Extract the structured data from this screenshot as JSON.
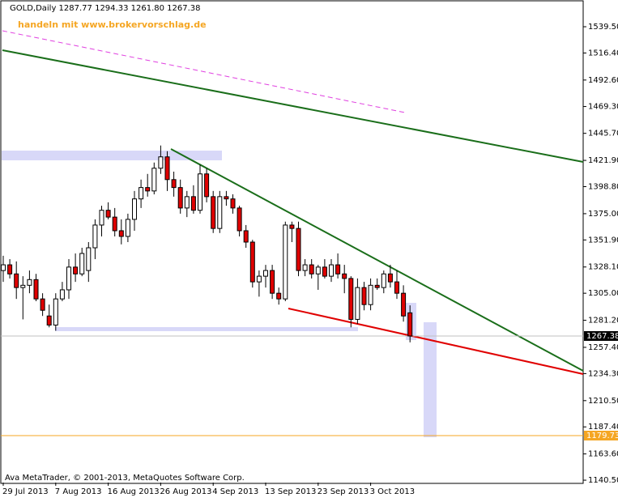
{
  "chart_data": {
    "type": "candlestick",
    "title": "GOLD,Daily  1287.77 1294.33 1261.80 1267.38",
    "watermark": "handeln mit www.brokervorschlag.de",
    "footer": "Ava MetaTrader, © 2001-2013, MetaQuotes Software Corp.",
    "categories": [
      "29 Jul 2013",
      null,
      null,
      null,
      null,
      null,
      null,
      null,
      "7 Aug 2013",
      null,
      null,
      null,
      null,
      null,
      null,
      null,
      "16 Aug 2013",
      null,
      null,
      null,
      null,
      null,
      null,
      null,
      "26 Aug 2013",
      null,
      null,
      null,
      null,
      null,
      null,
      null,
      "4 Sep 2013",
      null,
      null,
      null,
      null,
      null,
      null,
      null,
      "13 Sep 2013",
      null,
      null,
      null,
      null,
      null,
      null,
      null,
      "23 Sep 2013",
      null,
      null,
      null,
      null,
      null,
      null,
      null,
      "3 Oct 2013",
      null,
      null,
      null,
      null,
      null,
      null
    ],
    "open": [
      1325,
      1330,
      1322,
      1310,
      1312,
      1317,
      1300,
      1285,
      1277,
      1300,
      1308,
      1328,
      1322,
      1325,
      1345,
      1365,
      1378,
      1372,
      1360,
      1355,
      1370,
      1388,
      1398,
      1395,
      1415,
      1425,
      1405,
      1398,
      1380,
      1390,
      1378,
      1410,
      1390,
      1362,
      1390,
      1388,
      1380,
      1360,
      1350,
      1315,
      1320,
      1325,
      1305,
      1300,
      1365,
      1362,
      1325,
      1330,
      1322,
      1328,
      1320,
      1330,
      1322,
      1318,
      1282,
      1310,
      1295,
      1312,
      1310,
      1322,
      1315,
      1305,
      1287.77
    ],
    "high": [
      1338,
      1335,
      1333,
      1320,
      1325,
      1322,
      1305,
      1295,
      1305,
      1315,
      1335,
      1340,
      1345,
      1350,
      1370,
      1382,
      1385,
      1380,
      1370,
      1375,
      1395,
      1405,
      1410,
      1420,
      1435,
      1430,
      1412,
      1405,
      1395,
      1400,
      1418,
      1415,
      1395,
      1395,
      1395,
      1392,
      1382,
      1365,
      1352,
      1325,
      1330,
      1330,
      1310,
      1368,
      1368,
      1368,
      1335,
      1335,
      1330,
      1335,
      1335,
      1340,
      1330,
      1320,
      1318,
      1315,
      1318,
      1318,
      1325,
      1330,
      1325,
      1312,
      1294.33
    ],
    "low": [
      1315,
      1318,
      1300,
      1282,
      1305,
      1298,
      1285,
      1275,
      1272,
      1298,
      1300,
      1315,
      1320,
      1315,
      1335,
      1355,
      1370,
      1355,
      1348,
      1350,
      1360,
      1380,
      1390,
      1392,
      1410,
      1395,
      1390,
      1375,
      1372,
      1375,
      1375,
      1385,
      1358,
      1358,
      1382,
      1375,
      1355,
      1345,
      1310,
      1302,
      1310,
      1300,
      1295,
      1298,
      1350,
      1320,
      1320,
      1318,
      1308,
      1318,
      1315,
      1318,
      1305,
      1275,
      1278,
      1290,
      1290,
      1308,
      1305,
      1310,
      1300,
      1280,
      1261.8
    ],
    "close": [
      1330,
      1322,
      1310,
      1312,
      1317,
      1300,
      1290,
      1277,
      1300,
      1308,
      1328,
      1322,
      1340,
      1345,
      1365,
      1378,
      1372,
      1360,
      1355,
      1370,
      1388,
      1398,
      1395,
      1415,
      1425,
      1405,
      1398,
      1380,
      1390,
      1378,
      1410,
      1390,
      1362,
      1390,
      1388,
      1380,
      1360,
      1350,
      1315,
      1320,
      1325,
      1305,
      1300,
      1365,
      1362,
      1325,
      1330,
      1322,
      1328,
      1320,
      1330,
      1322,
      1318,
      1282,
      1310,
      1295,
      1312,
      1310,
      1322,
      1315,
      1305,
      1285,
      1267.38
    ],
    "up_color": "#ffffff",
    "down_color": "#e00000",
    "ylim": [
      1138.4,
      1561.6
    ],
    "yticks": [
      {
        "value": 1539.5,
        "label": "1539.50"
      },
      {
        "value": 1516.4,
        "label": "1516.40"
      },
      {
        "value": 1492.6,
        "label": "1492.60"
      },
      {
        "value": 1469.3,
        "label": "1469.30"
      },
      {
        "value": 1445.7,
        "label": "1445.70"
      },
      {
        "value": 1421.9,
        "label": "1421.90"
      },
      {
        "value": 1398.8,
        "label": "1398.80"
      },
      {
        "value": 1375,
        "label": "1375.00"
      },
      {
        "value": 1351.9,
        "label": "1351.90"
      },
      {
        "value": 1328.1,
        "label": "1328.10"
      },
      {
        "value": 1305,
        "label": "1305.00"
      },
      {
        "value": 1281.2,
        "label": "1281.20"
      },
      {
        "value": 1257.4,
        "label": "1257.40"
      },
      {
        "value": 1234.3,
        "label": "1234.30"
      },
      {
        "value": 1210.5,
        "label": "1210.50"
      },
      {
        "value": 1187.4,
        "label": "1187.40"
      },
      {
        "value": 1163.6,
        "label": "1163.60"
      },
      {
        "value": 1140.5,
        "label": "1140.50"
      }
    ],
    "hline": {
      "value": 1179.73,
      "color": "#f5a623"
    }
  }
}
